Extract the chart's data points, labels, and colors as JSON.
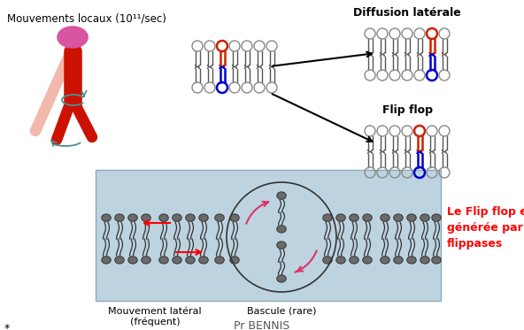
{
  "background_color": "#ffffff",
  "text_mouvements": "Mouvements locaux (10¹¹/sec)",
  "text_diffusion": "Diffusion latérale",
  "text_flipflop": "Flip flop",
  "text_mvt_lateral": "Mouvement latéral\n(fréquent)",
  "text_bascule": "Bascule (rare)",
  "text_annotation": "Le Flip flop est\ngénérée par des\nflippases",
  "text_footer": "Pr BENNIS",
  "text_star": "*",
  "annotation_color": "#ff0000",
  "arrow_color": "#ff0000",
  "bilayer_bg": "#bdd4e0",
  "head_color": "#666666",
  "head_color_red": "#cc2200",
  "head_color_blue": "#0000cc",
  "pink_circle": "#d855a0",
  "red_bar": "#cc1100",
  "light_red_bar": "#f0a090",
  "teal": "#4a9090"
}
